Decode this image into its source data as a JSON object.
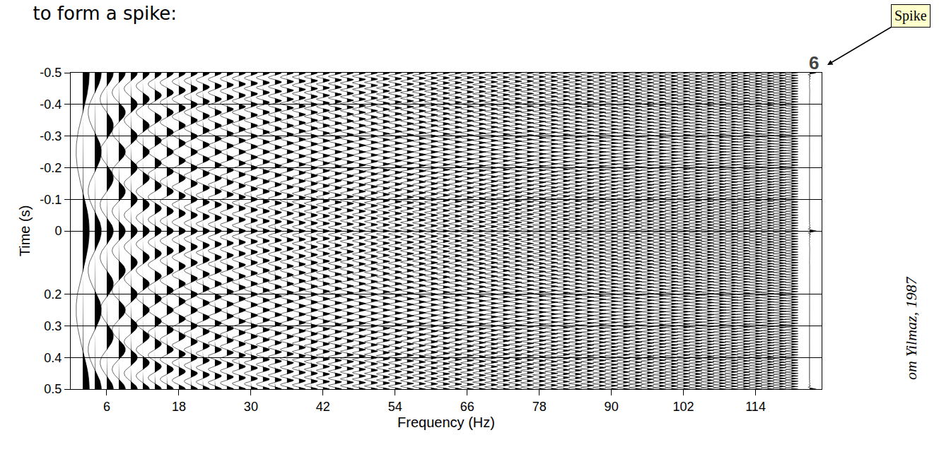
{
  "chart_data": {
    "type": "wiggle",
    "title": "to form a spike:",
    "x_label": "Frequency (Hz)",
    "y_label": "Time (s)",
    "frequencies": [
      2,
      4,
      6,
      8,
      10,
      12,
      14,
      16,
      18,
      20,
      22,
      24,
      26,
      28,
      30,
      32,
      34,
      36,
      38,
      40,
      42,
      44,
      46,
      48,
      50,
      52,
      54,
      56,
      58,
      60,
      62,
      64,
      66,
      68,
      70,
      72,
      74,
      76,
      78,
      80,
      82,
      84,
      86,
      88,
      90,
      92,
      94,
      96,
      98,
      100,
      102,
      104,
      106,
      108,
      110,
      112,
      114,
      116,
      118,
      120
    ],
    "spike_x": 123,
    "xlim": [
      0,
      125
    ],
    "xticks": [
      6,
      18,
      30,
      42,
      54,
      66,
      78,
      90,
      102,
      114
    ],
    "ylim": [
      -0.5,
      0.5
    ],
    "yticks": [
      -0.5,
      -0.4,
      -0.3,
      -0.2,
      -0.1,
      0,
      0.2,
      0.3,
      0.4,
      0.5
    ],
    "grid": true,
    "color": "#000000",
    "annotations": [
      {
        "text": "Spike"
      },
      {
        "text": "6"
      },
      {
        "text": "om Yilmaz, 1987"
      }
    ]
  }
}
